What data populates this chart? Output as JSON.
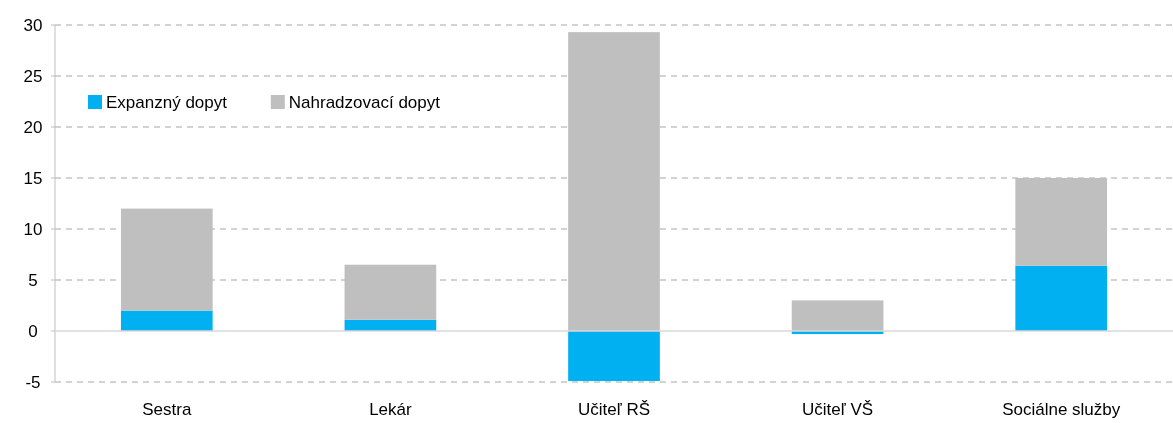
{
  "chart_data": {
    "type": "bar",
    "stacked": true,
    "categories": [
      "Sestra",
      "Lekár",
      "Učiteľ RŠ",
      "Učiteľ VŠ",
      "Sociálne služby"
    ],
    "series": [
      {
        "name": "Expanzný dopyt",
        "color": "#00b0f0",
        "values": [
          2.0,
          1.1,
          -4.9,
          -0.3,
          6.4
        ]
      },
      {
        "name": "Nahradzovací dopyt",
        "color": "#bfbfbf",
        "values": [
          10.0,
          5.4,
          29.3,
          3.0,
          8.6
        ]
      }
    ],
    "ylim": [
      -5,
      30
    ],
    "yticks": [
      -5,
      0,
      5,
      10,
      15,
      20,
      25,
      30
    ],
    "grid": "y",
    "legend": "top left"
  }
}
